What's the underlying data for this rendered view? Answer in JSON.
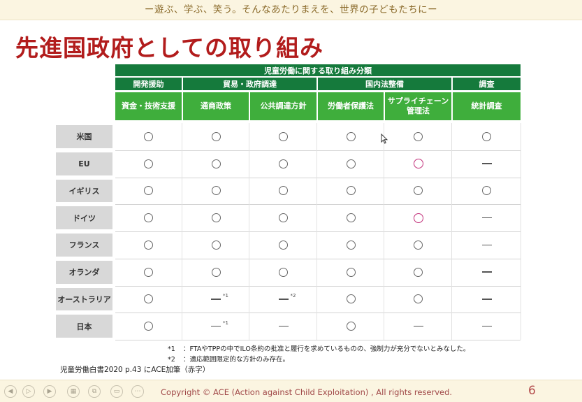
{
  "banner": {
    "text": "ー遊ぶ、学ぶ、笑う。そんなあたりまえを、世界の子どもたちにー"
  },
  "slide": {
    "title": "先進国政府としての取り組み"
  },
  "table": {
    "top_header": "児童労働に関する取り組み分類",
    "groups": [
      "開発援助",
      "貿易・政府調達",
      "国内法整備",
      "調査"
    ],
    "columns": [
      "資金・技術支援",
      "通商政策",
      "公共調達方針",
      "労働者保護法",
      "サプライチェーン\n管理法",
      "統計調査"
    ],
    "rows": [
      {
        "label": "米国",
        "cells": [
          "o",
          "o",
          "o",
          "o",
          "o",
          "o"
        ]
      },
      {
        "label": "EU",
        "cells": [
          "o",
          "o",
          "o",
          "o",
          "p",
          "-"
        ]
      },
      {
        "label": "イギリス",
        "cells": [
          "o",
          "o",
          "o",
          "o",
          "o",
          "o"
        ]
      },
      {
        "label": "ドイツ",
        "cells": [
          "o",
          "o",
          "o",
          "o",
          "p",
          "-"
        ]
      },
      {
        "label": "フランス",
        "cells": [
          "o",
          "o",
          "o",
          "o",
          "o",
          "-"
        ]
      },
      {
        "label": "オランダ",
        "cells": [
          "o",
          "o",
          "o",
          "o",
          "o",
          "-"
        ]
      },
      {
        "label": "オーストラリア",
        "cells": [
          "o",
          "-1",
          "-2",
          "o",
          "o",
          "-"
        ]
      },
      {
        "label": "日本",
        "cells": [
          "o",
          "-1",
          "-",
          "o",
          "-",
          "-"
        ]
      }
    ],
    "footnote_marks": {
      "m1": "*1",
      "m2": "*2"
    }
  },
  "notes": [
    {
      "mark": "*1",
      "text": "：FTAやTPPの中でILO条約の批准と履行を求めているものの、強制力が充分でないとみなした。"
    },
    {
      "mark": "*2",
      "text": "：適応範囲限定的な方針のみ存在。"
    }
  ],
  "source": "児童労働白書2020 p.43 にACE加筆（赤字）",
  "footer": {
    "copyright": "Copyright © ACE (Action against Child Exploitation) , All rights reserved.",
    "page": "6"
  },
  "colors": {
    "dark_green": "#157a3c",
    "light_green": "#3fae3c",
    "title_red": "#b21c1c",
    "pink_circle": "#c2307a"
  },
  "icons": [
    "prev-icon",
    "play-icon",
    "next-icon",
    "slides-icon",
    "copy-icon",
    "notes-icon",
    "menu-icon"
  ]
}
